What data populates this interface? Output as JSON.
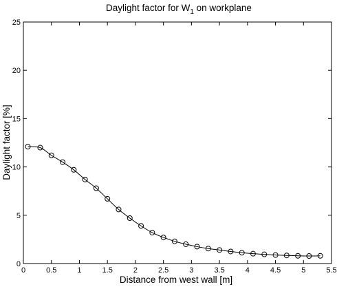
{
  "chart_data": {
    "type": "line",
    "title": {
      "prefix": "Daylight factor for W",
      "subscript": "1",
      "suffix": " on workplane"
    },
    "xlabel": "Distance from west wall [m]",
    "ylabel": "Daylight factor [%]",
    "xlim": [
      0,
      5.5
    ],
    "ylim": [
      0,
      25
    ],
    "xticks": [
      0,
      0.5,
      1,
      1.5,
      2,
      2.5,
      3,
      3.5,
      4,
      4.5,
      5,
      5.5
    ],
    "xtick_labels": [
      "0",
      "0.5",
      "1",
      "1.5",
      "2",
      "2.5",
      "3",
      "3.5",
      "4",
      "4.5",
      "5",
      "5.5"
    ],
    "yticks": [
      0,
      5,
      10,
      15,
      20,
      25
    ],
    "ytick_labels": [
      "0",
      "5",
      "10",
      "15",
      "20",
      "25"
    ],
    "grid": false,
    "series": [
      {
        "marker": "circle",
        "color": "#000000",
        "x": [
          0.08,
          0.3,
          0.5,
          0.7,
          0.9,
          1.1,
          1.3,
          1.5,
          1.7,
          1.9,
          2.1,
          2.3,
          2.5,
          2.7,
          2.9,
          3.1,
          3.3,
          3.5,
          3.7,
          3.9,
          4.1,
          4.3,
          4.5,
          4.7,
          4.9,
          5.1,
          5.3
        ],
        "y": [
          12.1,
          12.0,
          11.2,
          10.5,
          9.7,
          8.7,
          7.8,
          6.7,
          5.6,
          4.7,
          3.9,
          3.2,
          2.7,
          2.3,
          2.0,
          1.75,
          1.55,
          1.4,
          1.25,
          1.12,
          1.02,
          0.95,
          0.88,
          0.84,
          0.8,
          0.78,
          0.8
        ]
      }
    ]
  }
}
